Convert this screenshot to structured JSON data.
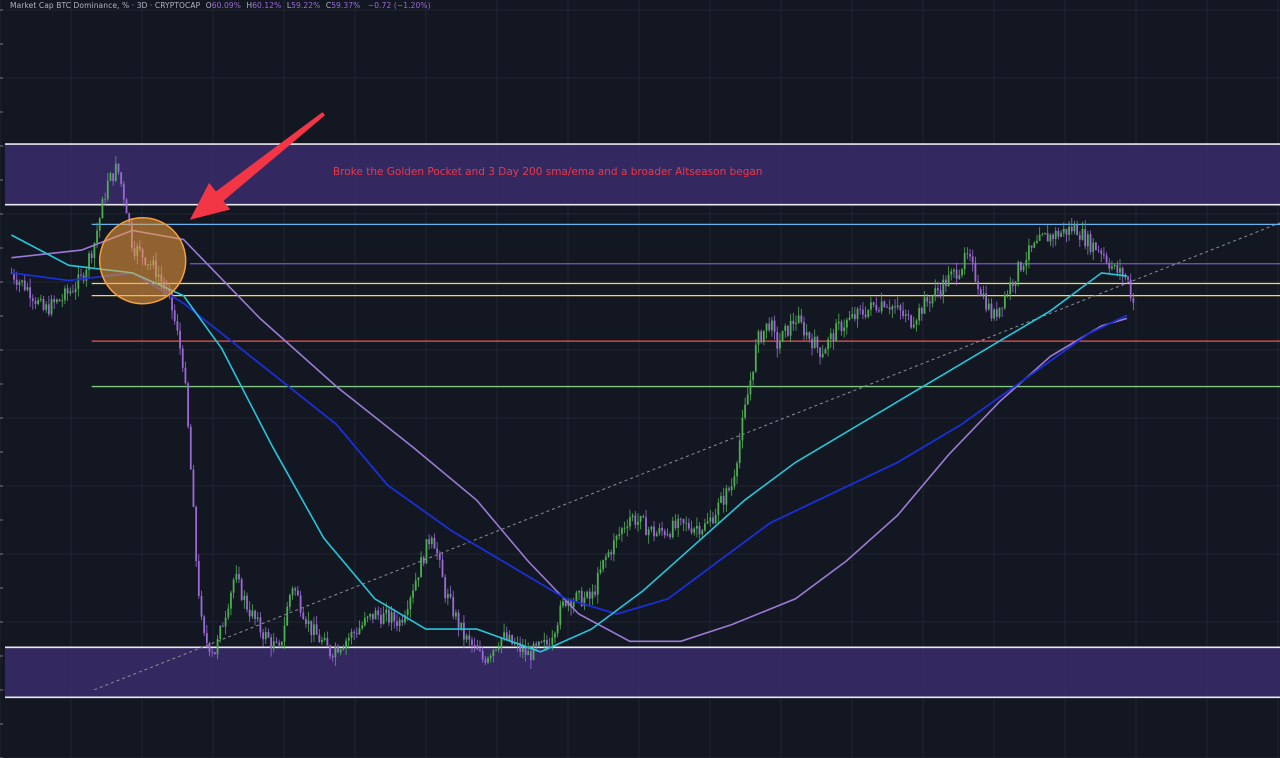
{
  "header": {
    "symbol": "Market Cap BTC Dominance, % · 3D · CRYPTOCAP",
    "open_label": "O",
    "open": "60.09%",
    "high_label": "H",
    "high": "60.12%",
    "low_label": "L",
    "low": "59.22%",
    "close_label": "C",
    "close": "59.37%",
    "change": "−0.72 (−1.20%)"
  },
  "annotation": {
    "text": "Broke the Golden Pocket and 3 Day 200 sma/ema and a broader Altseason began"
  },
  "colors": {
    "background": "#131722",
    "grid": "#1f2433",
    "up_candle": "#4caf50",
    "down_candle": "#9b6ad6",
    "zone_fill": "#3b2c6b",
    "arrow": "#f23645",
    "circle": "#f5a03c",
    "ema_fast": "#26c6da",
    "ma_mid": "#1a2fd6",
    "ma_slow": "#9c7bd6"
  },
  "chart_data": {
    "type": "candlestick",
    "ylim": [
      30,
      80
    ],
    "zones": [
      {
        "name": "upper-zone",
        "from": 66.5,
        "to": 70.5
      },
      {
        "name": "lower-zone",
        "from": 34.0,
        "to": 37.3
      }
    ],
    "levels": [
      {
        "value": 65.2,
        "color": "#64b5f6"
      },
      {
        "value": 62.6,
        "color": "#7e57c2"
      },
      {
        "value": 61.3,
        "color": "#ffd54f"
      },
      {
        "value": 60.5,
        "color": "#ffd54f"
      },
      {
        "value": 57.5,
        "color": "#ef5350"
      },
      {
        "value": 54.5,
        "color": "#81c784"
      }
    ],
    "trendline": {
      "from": [
        0.07,
        34.5
      ],
      "to": [
        1.0,
        65.3
      ]
    },
    "price": [
      [
        0.005,
        62.0
      ],
      [
        0.02,
        60.8
      ],
      [
        0.03,
        59.5
      ],
      [
        0.045,
        60.3
      ],
      [
        0.06,
        61.6
      ],
      [
        0.07,
        64.0
      ],
      [
        0.08,
        67.8
      ],
      [
        0.088,
        69.0
      ],
      [
        0.095,
        66.5
      ],
      [
        0.1,
        63.8
      ],
      [
        0.11,
        63.0
      ],
      [
        0.12,
        62.0
      ],
      [
        0.13,
        60.0
      ],
      [
        0.14,
        56.0
      ],
      [
        0.145,
        50.0
      ],
      [
        0.15,
        43.0
      ],
      [
        0.155,
        38.0
      ],
      [
        0.165,
        37.0
      ],
      [
        0.18,
        42.0
      ],
      [
        0.19,
        40.0
      ],
      [
        0.2,
        38.5
      ],
      [
        0.215,
        37.0
      ],
      [
        0.225,
        41.5
      ],
      [
        0.24,
        38.5
      ],
      [
        0.255,
        37.0
      ],
      [
        0.27,
        38.0
      ],
      [
        0.29,
        39.5
      ],
      [
        0.31,
        39.0
      ],
      [
        0.325,
        42.5
      ],
      [
        0.335,
        45.0
      ],
      [
        0.345,
        41.0
      ],
      [
        0.36,
        38.0
      ],
      [
        0.375,
        36.5
      ],
      [
        0.39,
        38.0
      ],
      [
        0.41,
        36.8
      ],
      [
        0.425,
        37.5
      ],
      [
        0.44,
        40.5
      ],
      [
        0.46,
        40.5
      ],
      [
        0.47,
        43.0
      ],
      [
        0.49,
        46.0
      ],
      [
        0.51,
        44.8
      ],
      [
        0.53,
        45.3
      ],
      [
        0.55,
        45.3
      ],
      [
        0.57,
        48.0
      ],
      [
        0.59,
        57.5
      ],
      [
        0.6,
        58.8
      ],
      [
        0.605,
        57.2
      ],
      [
        0.62,
        59.0
      ],
      [
        0.64,
        56.8
      ],
      [
        0.655,
        58.5
      ],
      [
        0.675,
        59.5
      ],
      [
        0.69,
        60.2
      ],
      [
        0.71,
        58.8
      ],
      [
        0.725,
        60.3
      ],
      [
        0.745,
        62.0
      ],
      [
        0.755,
        63.0
      ],
      [
        0.765,
        61.0
      ],
      [
        0.775,
        59.0
      ],
      [
        0.79,
        61.5
      ],
      [
        0.8,
        63.0
      ],
      [
        0.815,
        64.3
      ],
      [
        0.83,
        64.7
      ],
      [
        0.84,
        65.0
      ],
      [
        0.85,
        64.0
      ],
      [
        0.86,
        63.5
      ],
      [
        0.87,
        62.2
      ],
      [
        0.88,
        61.7
      ],
      [
        0.885,
        60.0
      ]
    ],
    "ema_fast": [
      [
        0.005,
        64.5
      ],
      [
        0.05,
        62.5
      ],
      [
        0.1,
        62.0
      ],
      [
        0.14,
        60.5
      ],
      [
        0.17,
        57.0
      ],
      [
        0.21,
        50.5
      ],
      [
        0.25,
        44.5
      ],
      [
        0.29,
        40.5
      ],
      [
        0.33,
        38.5
      ],
      [
        0.37,
        38.5
      ],
      [
        0.42,
        37.0
      ],
      [
        0.46,
        38.5
      ],
      [
        0.5,
        41.0
      ],
      [
        0.54,
        44.0
      ],
      [
        0.58,
        47.0
      ],
      [
        0.62,
        49.5
      ],
      [
        0.66,
        51.5
      ],
      [
        0.7,
        53.5
      ],
      [
        0.74,
        55.5
      ],
      [
        0.78,
        57.5
      ],
      [
        0.82,
        59.5
      ],
      [
        0.86,
        62.0
      ],
      [
        0.88,
        61.8
      ]
    ],
    "ma_mid": [
      [
        0.005,
        62.0
      ],
      [
        0.05,
        61.5
      ],
      [
        0.1,
        62.0
      ],
      [
        0.14,
        60.0
      ],
      [
        0.2,
        56.0
      ],
      [
        0.26,
        52.0
      ],
      [
        0.3,
        48.0
      ],
      [
        0.35,
        45.0
      ],
      [
        0.4,
        42.5
      ],
      [
        0.44,
        40.5
      ],
      [
        0.48,
        39.5
      ],
      [
        0.52,
        40.5
      ],
      [
        0.56,
        43.0
      ],
      [
        0.6,
        45.5
      ],
      [
        0.65,
        47.5
      ],
      [
        0.7,
        49.5
      ],
      [
        0.75,
        52.0
      ],
      [
        0.8,
        55.0
      ],
      [
        0.85,
        58.0
      ],
      [
        0.88,
        59.2
      ]
    ],
    "ma_slow": [
      [
        0.005,
        63.0
      ],
      [
        0.06,
        63.5
      ],
      [
        0.1,
        64.8
      ],
      [
        0.14,
        64.2
      ],
      [
        0.2,
        59.0
      ],
      [
        0.26,
        54.5
      ],
      [
        0.32,
        50.5
      ],
      [
        0.37,
        47.0
      ],
      [
        0.41,
        43.0
      ],
      [
        0.45,
        39.5
      ],
      [
        0.49,
        37.7
      ],
      [
        0.53,
        37.7
      ],
      [
        0.57,
        38.8
      ],
      [
        0.62,
        40.5
      ],
      [
        0.66,
        43.0
      ],
      [
        0.7,
        46.0
      ],
      [
        0.74,
        50.0
      ],
      [
        0.78,
        53.5
      ],
      [
        0.82,
        56.5
      ],
      [
        0.86,
        58.5
      ],
      [
        0.88,
        59.0
      ]
    ],
    "circle": {
      "x": 0.108,
      "y": 62.8
    },
    "arrow": {
      "from": [
        0.25,
        72.5
      ],
      "to": [
        0.145,
        65.5
      ]
    }
  }
}
